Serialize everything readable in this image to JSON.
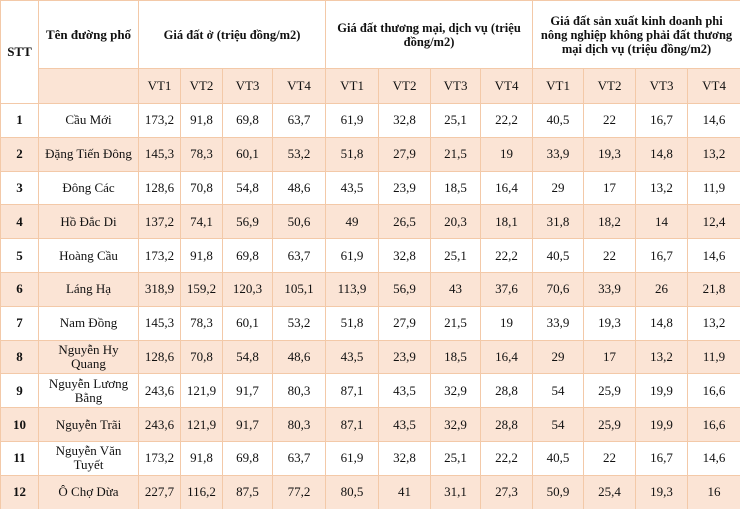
{
  "header": {
    "stt": "STT",
    "street": "Tên đường phố",
    "groups": [
      "Giá đất ở (triệu đồng/m2)",
      "Giá đất thương mại, dịch vụ (triệu đồng/m2)",
      "Giá đất sản xuất kinh doanh phi nông nghiệp không phải đất thương mại dịch vụ (triệu đồng/m2)"
    ],
    "subcolumns": [
      "VT1",
      "VT2",
      "VT3",
      "VT4",
      "VT1",
      "VT2",
      "VT3",
      "VT4",
      "VT1",
      "VT2",
      "VT3",
      "VT4"
    ]
  },
  "rows": [
    {
      "stt": "1",
      "street": "Cầu Mới",
      "values": [
        "173,2",
        "91,8",
        "69,8",
        "63,7",
        "61,9",
        "32,8",
        "25,1",
        "22,2",
        "40,5",
        "22",
        "16,7",
        "14,6"
      ]
    },
    {
      "stt": "2",
      "street": "Đặng Tiến Đông",
      "values": [
        "145,3",
        "78,3",
        "60,1",
        "53,2",
        "51,8",
        "27,9",
        "21,5",
        "19",
        "33,9",
        "19,3",
        "14,8",
        "13,2"
      ]
    },
    {
      "stt": "3",
      "street": "Đông Các",
      "values": [
        "128,6",
        "70,8",
        "54,8",
        "48,6",
        "43,5",
        "23,9",
        "18,5",
        "16,4",
        "29",
        "17",
        "13,2",
        "11,9"
      ]
    },
    {
      "stt": "4",
      "street": "Hồ Đắc Di",
      "values": [
        "137,2",
        "74,1",
        "56,9",
        "50,6",
        "49",
        "26,5",
        "20,3",
        "18,1",
        "31,8",
        "18,2",
        "14",
        "12,4"
      ]
    },
    {
      "stt": "5",
      "street": "Hoàng Cầu",
      "values": [
        "173,2",
        "91,8",
        "69,8",
        "63,7",
        "61,9",
        "32,8",
        "25,1",
        "22,2",
        "40,5",
        "22",
        "16,7",
        "14,6"
      ]
    },
    {
      "stt": "6",
      "street": "Láng Hạ",
      "values": [
        "318,9",
        "159,2",
        "120,3",
        "105,1",
        "113,9",
        "56,9",
        "43",
        "37,6",
        "70,6",
        "33,9",
        "26",
        "21,8"
      ]
    },
    {
      "stt": "7",
      "street": "Nam Đồng",
      "values": [
        "145,3",
        "78,3",
        "60,1",
        "53,2",
        "51,8",
        "27,9",
        "21,5",
        "19",
        "33,9",
        "19,3",
        "14,8",
        "13,2"
      ]
    },
    {
      "stt": "8",
      "street": "Nguyễn Hy Quang",
      "values": [
        "128,6",
        "70,8",
        "54,8",
        "48,6",
        "43,5",
        "23,9",
        "18,5",
        "16,4",
        "29",
        "17",
        "13,2",
        "11,9"
      ]
    },
    {
      "stt": "9",
      "street": "Nguyễn Lương Bằng",
      "values": [
        "243,6",
        "121,9",
        "91,7",
        "80,3",
        "87,1",
        "43,5",
        "32,9",
        "28,8",
        "54",
        "25,9",
        "19,9",
        "16,6"
      ]
    },
    {
      "stt": "10",
      "street": "Nguyễn Trãi",
      "values": [
        "243,6",
        "121,9",
        "91,7",
        "80,3",
        "87,1",
        "43,5",
        "32,9",
        "28,8",
        "54",
        "25,9",
        "19,9",
        "16,6"
      ]
    },
    {
      "stt": "11",
      "street": "Nguyễn Văn Tuyết",
      "values": [
        "173,2",
        "91,8",
        "69,8",
        "63,7",
        "61,9",
        "32,8",
        "25,1",
        "22,2",
        "40,5",
        "22",
        "16,7",
        "14,6"
      ]
    },
    {
      "stt": "12",
      "street": "Ô Chợ Dừa",
      "values": [
        "227,7",
        "116,2",
        "87,5",
        "77,2",
        "80,5",
        "41",
        "31,1",
        "27,3",
        "50,9",
        "25,4",
        "19,3",
        "16"
      ]
    }
  ]
}
